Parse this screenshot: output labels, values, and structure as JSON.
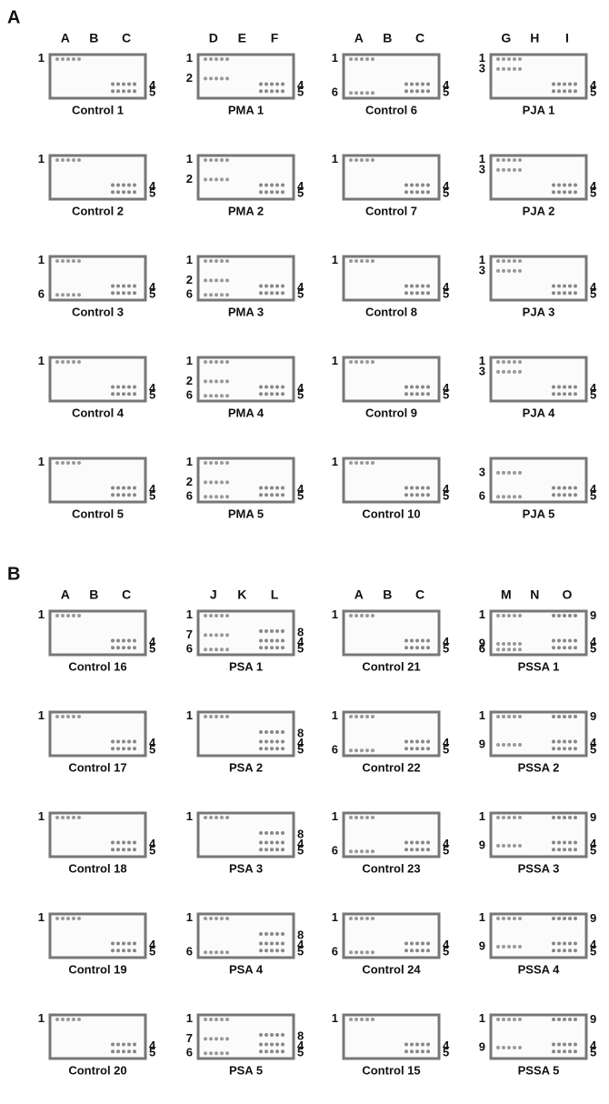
{
  "panels": [
    {
      "label": "A",
      "column_headers": [
        [
          "A",
          "B",
          "C"
        ],
        [
          "D",
          "E",
          "F"
        ],
        [
          "A",
          "B",
          "C"
        ],
        [
          "G",
          "H",
          "I"
        ]
      ],
      "plates": [
        {
          "caption": "Control 1",
          "left": [
            "1"
          ],
          "right": [
            "4",
            "5"
          ]
        },
        {
          "caption": "PMA 1",
          "left": [
            "1",
            "2"
          ],
          "right": [
            "4",
            "5"
          ]
        },
        {
          "caption": "Control 6",
          "left": [
            "1",
            "6"
          ],
          "right": [
            "4",
            "5"
          ]
        },
        {
          "caption": "PJA 1",
          "left": [
            "1",
            "3"
          ],
          "right": [
            "4",
            "5"
          ]
        },
        {
          "caption": "Control 2",
          "left": [
            "1"
          ],
          "right": [
            "4",
            "5"
          ]
        },
        {
          "caption": "PMA 2",
          "left": [
            "1",
            "2"
          ],
          "right": [
            "4",
            "5"
          ]
        },
        {
          "caption": "Control 7",
          "left": [
            "1"
          ],
          "right": [
            "4",
            "5"
          ]
        },
        {
          "caption": "PJA 2",
          "left": [
            "1",
            "3"
          ],
          "right": [
            "4",
            "5"
          ]
        },
        {
          "caption": "Control 3",
          "left": [
            "1",
            "6"
          ],
          "right": [
            "4",
            "5"
          ]
        },
        {
          "caption": "PMA 3",
          "left": [
            "1",
            "2",
            "6"
          ],
          "right": [
            "4",
            "5"
          ]
        },
        {
          "caption": "Control 8",
          "left": [
            "1"
          ],
          "right": [
            "4",
            "5"
          ]
        },
        {
          "caption": "PJA 3",
          "left": [
            "1",
            "3"
          ],
          "right": [
            "4",
            "5"
          ]
        },
        {
          "caption": "Control 4",
          "left": [
            "1"
          ],
          "right": [
            "4",
            "5"
          ]
        },
        {
          "caption": "PMA 4",
          "left": [
            "1",
            "2",
            "6"
          ],
          "right": [
            "4",
            "5"
          ]
        },
        {
          "caption": "Control 9",
          "left": [
            "1"
          ],
          "right": [
            "4",
            "5"
          ]
        },
        {
          "caption": "PJA 4",
          "left": [
            "1",
            "3"
          ],
          "right": [
            "4",
            "5"
          ]
        },
        {
          "caption": "Control 5",
          "left": [
            "1"
          ],
          "right": [
            "4",
            "5"
          ]
        },
        {
          "caption": "PMA 5",
          "left": [
            "1",
            "2",
            "6"
          ],
          "right": [
            "4",
            "5"
          ]
        },
        {
          "caption": "Control 10",
          "left": [
            "1"
          ],
          "right": [
            "4",
            "5"
          ]
        },
        {
          "caption": "PJA 5",
          "left": [
            "3",
            "6"
          ],
          "right": [
            "4",
            "5"
          ]
        }
      ]
    },
    {
      "label": "B",
      "column_headers": [
        [
          "A",
          "B",
          "C"
        ],
        [
          "J",
          "K",
          "L"
        ],
        [
          "A",
          "B",
          "C"
        ],
        [
          "M",
          "N",
          "O"
        ]
      ],
      "plates": [
        {
          "caption": "Control 16",
          "left": [
            "1"
          ],
          "right": [
            "4",
            "5"
          ]
        },
        {
          "caption": "PSA 1",
          "left": [
            "1",
            "7",
            "6"
          ],
          "right": [
            "8",
            "4",
            "5"
          ]
        },
        {
          "caption": "Control 21",
          "left": [
            "1"
          ],
          "right": [
            "4",
            "5"
          ]
        },
        {
          "caption": "PSSA 1",
          "left": [
            "1",
            "9",
            "6"
          ],
          "right": [
            "9",
            "4",
            "5"
          ]
        },
        {
          "caption": "Control 17",
          "left": [
            "1"
          ],
          "right": [
            "4",
            "5"
          ]
        },
        {
          "caption": "PSA 2",
          "left": [
            "1"
          ],
          "right": [
            "8",
            "4",
            "5"
          ]
        },
        {
          "caption": "Control 22",
          "left": [
            "1",
            "6"
          ],
          "right": [
            "4",
            "5"
          ]
        },
        {
          "caption": "PSSA 2",
          "left": [
            "1",
            "9"
          ],
          "right": [
            "9",
            "4",
            "5"
          ]
        },
        {
          "caption": "Control 18",
          "left": [
            "1"
          ],
          "right": [
            "4",
            "5"
          ]
        },
        {
          "caption": "PSA 3",
          "left": [
            "1"
          ],
          "right": [
            "8",
            "4",
            "5"
          ]
        },
        {
          "caption": "Control 23",
          "left": [
            "1",
            "6"
          ],
          "right": [
            "4",
            "5"
          ]
        },
        {
          "caption": "PSSA 3",
          "left": [
            "1",
            "9"
          ],
          "right": [
            "9",
            "4",
            "5"
          ]
        },
        {
          "caption": "Control 19",
          "left": [
            "1"
          ],
          "right": [
            "4",
            "5"
          ]
        },
        {
          "caption": "PSA 4",
          "left": [
            "1",
            "6"
          ],
          "right": [
            "8",
            "4",
            "5"
          ]
        },
        {
          "caption": "Control 24",
          "left": [
            "1",
            "6"
          ],
          "right": [
            "4",
            "5"
          ]
        },
        {
          "caption": "PSSA 4",
          "left": [
            "1",
            "9"
          ],
          "right": [
            "9",
            "4",
            "5"
          ]
        },
        {
          "caption": "Control 20",
          "left": [
            "1"
          ],
          "right": [
            "4",
            "5"
          ]
        },
        {
          "caption": "PSA 5",
          "left": [
            "1",
            "7",
            "6"
          ],
          "right": [
            "8",
            "4",
            "5"
          ]
        },
        {
          "caption": "Control 15",
          "left": [
            "1"
          ],
          "right": [
            "4",
            "5"
          ]
        },
        {
          "caption": "PSSA 5",
          "left": [
            "1",
            "9"
          ],
          "right": [
            "9",
            "4",
            "5"
          ]
        }
      ]
    }
  ]
}
